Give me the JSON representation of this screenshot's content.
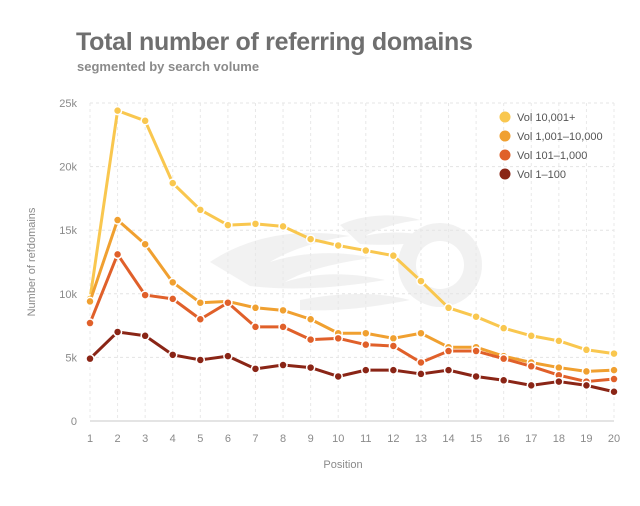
{
  "chart_data": {
    "type": "line",
    "title": "Total number of referring domains",
    "subtitle": "segmented by search volume",
    "xlabel": "Position",
    "ylabel": "Number of refdomains",
    "x": [
      1,
      2,
      3,
      4,
      5,
      6,
      7,
      8,
      9,
      10,
      11,
      12,
      13,
      14,
      15,
      16,
      17,
      18,
      19,
      20
    ],
    "ylim": [
      0,
      25000
    ],
    "yticks": [
      0,
      5000,
      10000,
      15000,
      20000,
      25000
    ],
    "ytick_labels": [
      "0",
      "5k",
      "10k",
      "15k",
      "20k",
      "25k"
    ],
    "grid": true,
    "legend_position": "top-right",
    "series": [
      {
        "name": "Vol 10,001+",
        "color": "#f9c74f",
        "values": [
          9600,
          24400,
          23600,
          18700,
          16600,
          15400,
          15500,
          15300,
          14300,
          13800,
          13400,
          13000,
          11000,
          8900,
          8200,
          7300,
          6700,
          6300,
          5600,
          5300
        ]
      },
      {
        "name": "Vol 1,001–10,000",
        "color": "#f0a030",
        "values": [
          9400,
          15800,
          13900,
          10900,
          9300,
          9400,
          8900,
          8700,
          8000,
          6900,
          6900,
          6500,
          6900,
          5800,
          5800,
          5100,
          4600,
          4200,
          3900,
          4000
        ]
      },
      {
        "name": "Vol 101–1,000",
        "color": "#e0602a",
        "values": [
          7700,
          13100,
          9900,
          9600,
          8000,
          9300,
          7400,
          7400,
          6400,
          6500,
          6000,
          5900,
          4600,
          5500,
          5500,
          4900,
          4300,
          3600,
          3100,
          3300
        ]
      },
      {
        "name": "Vol 1–100",
        "color": "#8a2516",
        "values": [
          4900,
          7000,
          6700,
          5200,
          4800,
          5100,
          4100,
          4400,
          4200,
          3500,
          4000,
          4000,
          3700,
          4000,
          3500,
          3200,
          2800,
          3100,
          2800,
          2300
        ]
      }
    ]
  }
}
